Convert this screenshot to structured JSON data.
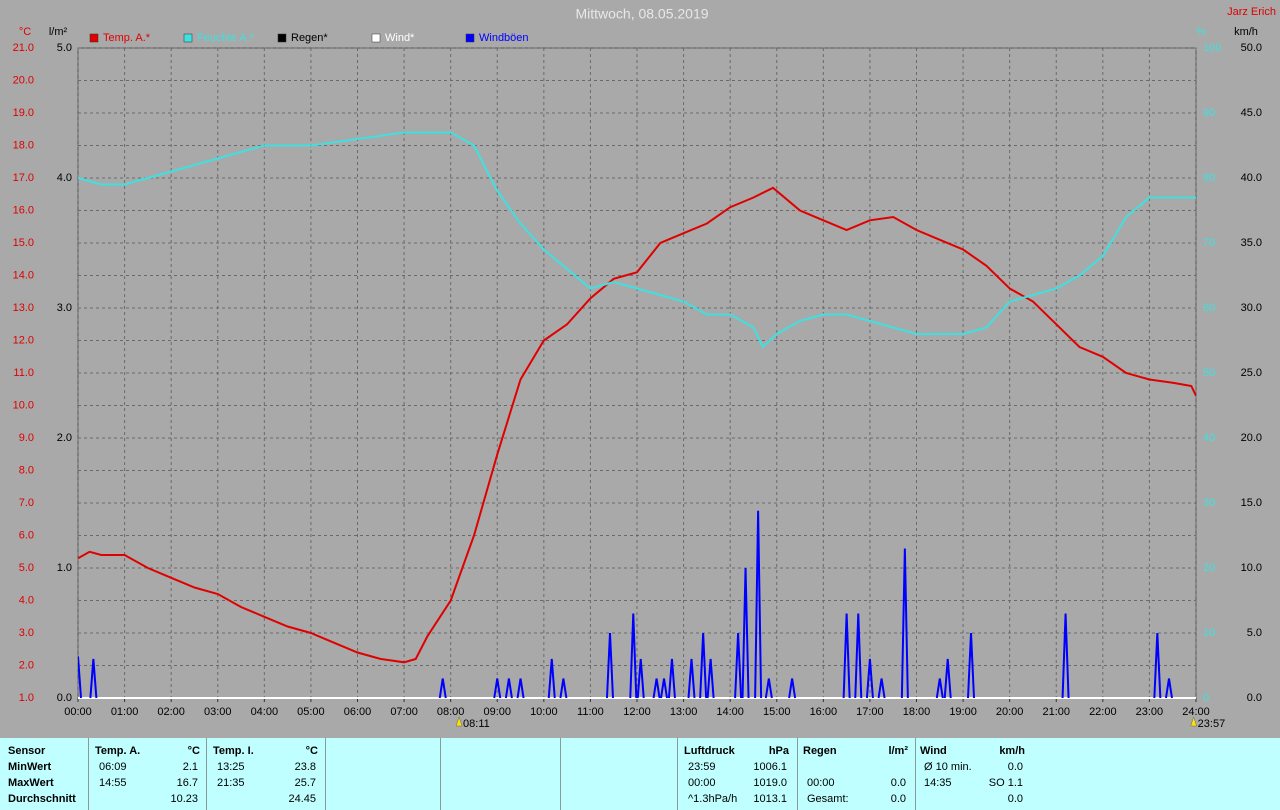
{
  "chart_data": {
    "type": "line",
    "title": "Mittwoch, 08.05.2019",
    "author": "Jarz Erich",
    "ylabel": "°C",
    "y2label": "%",
    "y3label": "l/m²",
    "y4label": "km/h",
    "xlim": [
      0,
      24
    ],
    "xticks": [
      {
        "value": 0,
        "label": "00:00"
      },
      {
        "value": 1,
        "label": "01:00"
      },
      {
        "value": 2,
        "label": "02:00"
      },
      {
        "value": 3,
        "label": "03:00"
      },
      {
        "value": 4,
        "label": "04:00"
      },
      {
        "value": 5,
        "label": "05:00"
      },
      {
        "value": 6,
        "label": "06:00"
      },
      {
        "value": 7,
        "label": "07:00"
      },
      {
        "value": 8,
        "label": "08:00"
      },
      {
        "value": 9,
        "label": "09:00"
      },
      {
        "value": 10,
        "label": "10:00"
      },
      {
        "value": 11,
        "label": "11:00"
      },
      {
        "value": 12,
        "label": "12:00"
      },
      {
        "value": 13,
        "label": "13:00"
      },
      {
        "value": 14,
        "label": "14:00"
      },
      {
        "value": 15,
        "label": "15:00"
      },
      {
        "value": 16,
        "label": "16:00"
      },
      {
        "value": 17,
        "label": "17:00"
      },
      {
        "value": 18,
        "label": "18:00"
      },
      {
        "value": 19,
        "label": "19:00"
      },
      {
        "value": 20,
        "label": "20:00"
      },
      {
        "value": 21,
        "label": "21:00"
      },
      {
        "value": 22,
        "label": "22:00"
      },
      {
        "value": 23,
        "label": "23:00"
      },
      {
        "value": 24,
        "label": "24:00"
      }
    ],
    "ylim": [
      1,
      21
    ],
    "yticks": [
      {
        "value": 1,
        "label": "1.0"
      },
      {
        "value": 2,
        "label": "2.0"
      },
      {
        "value": 3,
        "label": "3.0"
      },
      {
        "value": 4,
        "label": "4.0"
      },
      {
        "value": 5,
        "label": "5.0"
      },
      {
        "value": 6,
        "label": "6.0"
      },
      {
        "value": 7,
        "label": "7.0"
      },
      {
        "value": 8,
        "label": "8.0"
      },
      {
        "value": 9,
        "label": "9.0"
      },
      {
        "value": 10,
        "label": "10.0"
      },
      {
        "value": 11,
        "label": "11.0"
      },
      {
        "value": 12,
        "label": "12.0"
      },
      {
        "value": 13,
        "label": "13.0"
      },
      {
        "value": 14,
        "label": "14.0"
      },
      {
        "value": 15,
        "label": "15.0"
      },
      {
        "value": 16,
        "label": "16.0"
      },
      {
        "value": 17,
        "label": "17.0"
      },
      {
        "value": 18,
        "label": "18.0"
      },
      {
        "value": 19,
        "label": "19.0"
      },
      {
        "value": 20,
        "label": "20.0"
      },
      {
        "value": 21,
        "label": "21.0"
      }
    ],
    "y2lim": [
      0,
      100
    ],
    "y2ticks": [
      0,
      10,
      20,
      30,
      40,
      50,
      60,
      70,
      80,
      90,
      100
    ],
    "y3lim": [
      0,
      5
    ],
    "y3ticks": [
      {
        "value": 0,
        "label": "0.0"
      },
      {
        "value": 1,
        "label": "1.0"
      },
      {
        "value": 2,
        "label": "2.0"
      },
      {
        "value": 3,
        "label": "3.0"
      },
      {
        "value": 4,
        "label": "4.0"
      },
      {
        "value": 5,
        "label": "5.0"
      }
    ],
    "y4lim": [
      0,
      50
    ],
    "y4ticks": [
      {
        "value": 0,
        "label": "0.0"
      },
      {
        "value": 5,
        "label": "5.0"
      },
      {
        "value": 10,
        "label": "10.0"
      },
      {
        "value": 15,
        "label": "15.0"
      },
      {
        "value": 20,
        "label": "20.0"
      },
      {
        "value": 25,
        "label": "25.0"
      },
      {
        "value": 30,
        "label": "30.0"
      },
      {
        "value": 35,
        "label": "35.0"
      },
      {
        "value": 40,
        "label": "40.0"
      },
      {
        "value": 45,
        "label": "45.0"
      },
      {
        "value": 50,
        "label": "50.0"
      }
    ],
    "grid": true,
    "series": [
      {
        "name": "Temp. A.*",
        "color": "#e00000",
        "axis": "y",
        "style": "line",
        "x": [
          0,
          0.25,
          0.5,
          1,
          1.5,
          2,
          2.5,
          3,
          3.5,
          4,
          4.5,
          5,
          5.5,
          6,
          6.5,
          7,
          7.25,
          7.5,
          8,
          8.5,
          9,
          9.5,
          10,
          10.5,
          11,
          11.5,
          12,
          12.5,
          13,
          13.5,
          14,
          14.5,
          14.92,
          15.5,
          16,
          16.5,
          17,
          17.5,
          18,
          18.5,
          19,
          19.5,
          20,
          20.5,
          21,
          21.5,
          22,
          22.5,
          23,
          23.5,
          23.9,
          24
        ],
        "values": [
          5.3,
          5.5,
          5.4,
          5.4,
          5.0,
          4.7,
          4.4,
          4.2,
          3.8,
          3.5,
          3.2,
          3.0,
          2.7,
          2.4,
          2.2,
          2.1,
          2.2,
          2.9,
          4.0,
          6.0,
          8.5,
          10.8,
          12.0,
          12.5,
          13.3,
          13.9,
          14.1,
          15.0,
          15.3,
          15.6,
          16.1,
          16.4,
          16.7,
          16.0,
          15.7,
          15.4,
          15.7,
          15.8,
          15.4,
          15.1,
          14.8,
          14.3,
          13.6,
          13.2,
          12.5,
          11.8,
          11.5,
          11.0,
          10.8,
          10.7,
          10.6,
          10.3
        ]
      },
      {
        "name": "Feuchte A.*",
        "color": "#40e0e0",
        "axis": "y2",
        "style": "line",
        "x": [
          0,
          0.5,
          1,
          2,
          3,
          4,
          5,
          6,
          7,
          8,
          8.5,
          9,
          9.5,
          10,
          10.5,
          11,
          11.5,
          12,
          12.5,
          13,
          13.5,
          14,
          14.5,
          14.7,
          15,
          15.5,
          16,
          16.5,
          17,
          17.5,
          18,
          18.5,
          19,
          19.5,
          20,
          20.5,
          21,
          21.5,
          22,
          22.5,
          23,
          23.5,
          24
        ],
        "values": [
          80,
          79,
          79,
          81,
          83,
          85,
          85,
          86,
          87,
          87,
          85,
          78,
          73,
          69,
          66,
          63,
          64,
          63,
          62,
          61,
          59,
          59,
          57,
          54,
          56,
          58,
          59,
          59,
          58,
          57,
          56,
          56,
          56,
          57,
          61,
          62,
          63,
          65,
          68,
          74,
          77,
          77,
          77
        ]
      },
      {
        "name": "Regen*",
        "color": "#000000",
        "axis": "y3",
        "style": "line",
        "x": [
          0,
          24
        ],
        "values": [
          0,
          0
        ]
      },
      {
        "name": "Wind*",
        "color": "#ffffff",
        "axis": "y4",
        "style": "line",
        "x": [
          0,
          24
        ],
        "values": [
          0,
          0
        ]
      },
      {
        "name": "Windböen",
        "color": "#0000ff",
        "axis": "y4",
        "style": "spike",
        "x": [
          0,
          0.33,
          7.83,
          9.0,
          9.25,
          9.5,
          10.17,
          10.42,
          11.42,
          11.92,
          12.08,
          12.42,
          12.58,
          12.75,
          13.17,
          13.42,
          13.58,
          14.17,
          14.33,
          14.6,
          14.83,
          15.33,
          16.5,
          16.75,
          17.0,
          17.25,
          17.75,
          18.5,
          18.67,
          19.17,
          21.2,
          23.17,
          23.42
        ],
        "values": [
          3.2,
          3.0,
          1.5,
          1.5,
          1.5,
          1.5,
          3.0,
          1.5,
          5.0,
          6.5,
          3.0,
          1.5,
          1.5,
          3.0,
          3.0,
          5.0,
          3.0,
          5.0,
          10.0,
          14.4,
          1.5,
          1.5,
          6.5,
          6.5,
          3.0,
          1.5,
          11.5,
          1.5,
          3.0,
          5.0,
          6.5,
          5.0,
          1.5
        ]
      }
    ],
    "annotations": [
      {
        "text": "08:11",
        "x": 8.18
      },
      {
        "text": "23:57",
        "x": 23.95
      }
    ]
  },
  "stats": {
    "sensor": {
      "header": "Sensor",
      "rows": [
        "MinWert",
        "MaxWert",
        "Durchschnitt"
      ]
    },
    "groups": [
      {
        "header": "Temp. A.",
        "unit": "°C",
        "rows": [
          [
            "06:09",
            "2.1"
          ],
          [
            "14:55",
            "16.7"
          ],
          [
            null,
            "10.23"
          ]
        ]
      },
      {
        "header": "Temp. I.",
        "unit": "°C",
        "rows": [
          [
            "13:25",
            "23.8"
          ],
          [
            "21:35",
            "25.7"
          ],
          [
            null,
            "24.45"
          ]
        ]
      },
      {
        "header": "Luftdruck",
        "unit": "hPa",
        "rows": [
          [
            "23:59",
            "1006.1"
          ],
          [
            "00:00",
            "1019.0"
          ],
          [
            "^1.3hPa/h",
            "1013.1"
          ]
        ]
      },
      {
        "header": "Regen",
        "unit": "l/m²",
        "rows": [
          [
            null,
            null
          ],
          [
            "00:00",
            "0.0"
          ],
          [
            "Gesamt:",
            "0.0"
          ]
        ]
      },
      {
        "header": "Wind",
        "unit": "km/h",
        "rows": [
          [
            "Ø 10 min.",
            "0.0"
          ],
          [
            "14:35",
            "SO 1.1"
          ],
          [
            null,
            "0.0"
          ]
        ]
      }
    ]
  }
}
